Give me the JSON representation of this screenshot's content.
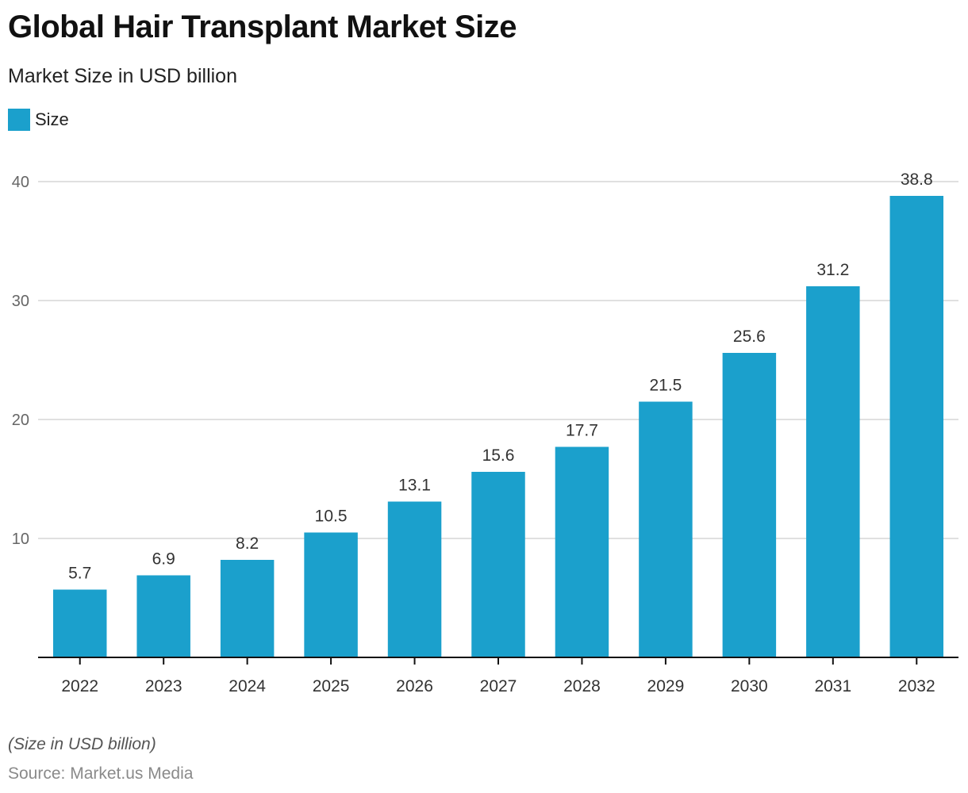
{
  "header": {
    "title": "Global Hair Transplant Market Size",
    "subtitle": "Market Size in USD billion"
  },
  "legend": {
    "items": [
      {
        "label": "Size",
        "color": "#1ba0cc"
      }
    ]
  },
  "footer": {
    "note": "(Size in USD billion)",
    "source": "Source: Market.us Media"
  },
  "chart_data": {
    "type": "bar",
    "title": "Global Hair Transplant Market Size",
    "subtitle": "Market Size in USD billion",
    "xlabel": "",
    "ylabel": "",
    "categories": [
      "2022",
      "2023",
      "2024",
      "2025",
      "2026",
      "2027",
      "2028",
      "2029",
      "2030",
      "2031",
      "2032"
    ],
    "series": [
      {
        "name": "Size",
        "color": "#1ba0cc",
        "values": [
          5.7,
          6.9,
          8.2,
          10.5,
          13.1,
          15.6,
          17.7,
          21.5,
          25.6,
          31.2,
          38.8
        ]
      }
    ],
    "data_labels": [
      "5.7",
      "6.9",
      "8.2",
      "10.5",
      "13.1",
      "15.6",
      "17.7",
      "21.5",
      "25.6",
      "31.2",
      "38.8"
    ],
    "yticks": [
      10,
      20,
      30,
      40
    ],
    "ytick_labels": [
      "10",
      "20",
      "30",
      "40"
    ],
    "ylim": [
      0,
      40
    ],
    "grid": true,
    "legend_position": "top-left"
  }
}
